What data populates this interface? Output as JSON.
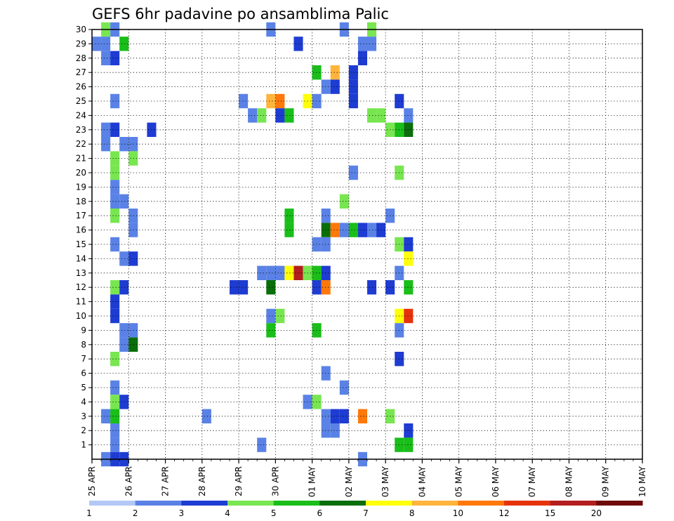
{
  "chart_data": {
    "type": "heatmap",
    "title": "GEFS 6hr padavine po ansamblima Palic",
    "x_tick_labels": [
      "25 APR",
      "26 APR",
      "27 APR",
      "28 APR",
      "29 APR",
      "30 APR",
      "01 MAY",
      "02 MAY",
      "03 MAY",
      "04 MAY",
      "05 MAY",
      "06 MAY",
      "07 MAY",
      "08 MAY",
      "09 MAY",
      "10 MAY"
    ],
    "y_tick_labels": [
      "1",
      "2",
      "3",
      "4",
      "5",
      "6",
      "7",
      "8",
      "9",
      "10",
      "11",
      "12",
      "13",
      "14",
      "15",
      "16",
      "17",
      "18",
      "19",
      "20",
      "21",
      "22",
      "23",
      "24",
      "25",
      "26",
      "27",
      "28",
      "29",
      "30"
    ],
    "x_steps_per_day": 4,
    "x_step_count": 61,
    "member_range": [
      0,
      30
    ],
    "grid": "dotted",
    "colorbar": {
      "labels": [
        "1",
        "2",
        "3",
        "4",
        "5",
        "6",
        "7",
        "8",
        "10",
        "12",
        "15",
        "20"
      ],
      "colors": [
        "#b4c8f5",
        "#5a82e6",
        "#1e3cd2",
        "#78e650",
        "#19be19",
        "#0a6e0a",
        "#ffff0a",
        "#ffb43c",
        "#ff780a",
        "#e6320a",
        "#b41e1e",
        "#6e0a0a"
      ]
    },
    "cells": [
      [
        1,
        30,
        3
      ],
      [
        2,
        30,
        1
      ],
      [
        19,
        30,
        1
      ],
      [
        27,
        30,
        1
      ],
      [
        30,
        30,
        3
      ],
      [
        0,
        29,
        1
      ],
      [
        1,
        29,
        1
      ],
      [
        3,
        29,
        4
      ],
      [
        22,
        29,
        2
      ],
      [
        29,
        29,
        1
      ],
      [
        30,
        29,
        1
      ],
      [
        1,
        28,
        1
      ],
      [
        2,
        28,
        2
      ],
      [
        29,
        28,
        2
      ],
      [
        24,
        27,
        4
      ],
      [
        26,
        27,
        7
      ],
      [
        28,
        27,
        2
      ],
      [
        25,
        26,
        1
      ],
      [
        26,
        26,
        2
      ],
      [
        28,
        26,
        2
      ],
      [
        2,
        25,
        1
      ],
      [
        16,
        25,
        1
      ],
      [
        19,
        25,
        7
      ],
      [
        20,
        25,
        8
      ],
      [
        23,
        25,
        6
      ],
      [
        24,
        25,
        1
      ],
      [
        28,
        25,
        2
      ],
      [
        33,
        25,
        2
      ],
      [
        17,
        24,
        1
      ],
      [
        18,
        24,
        3
      ],
      [
        20,
        24,
        2
      ],
      [
        21,
        24,
        4
      ],
      [
        30,
        24,
        3
      ],
      [
        31,
        24,
        3
      ],
      [
        34,
        24,
        1
      ],
      [
        1,
        23,
        1
      ],
      [
        2,
        23,
        2
      ],
      [
        6,
        23,
        2
      ],
      [
        32,
        23,
        3
      ],
      [
        33,
        23,
        4
      ],
      [
        34,
        23,
        5
      ],
      [
        1,
        22,
        1
      ],
      [
        3,
        22,
        1
      ],
      [
        4,
        22,
        1
      ],
      [
        2,
        21,
        3
      ],
      [
        4,
        21,
        3
      ],
      [
        2,
        20,
        3
      ],
      [
        28,
        20,
        1
      ],
      [
        33,
        20,
        3
      ],
      [
        2,
        19,
        1
      ],
      [
        2,
        18,
        1
      ],
      [
        3,
        18,
        1
      ],
      [
        27,
        18,
        3
      ],
      [
        2,
        17,
        3
      ],
      [
        4,
        17,
        1
      ],
      [
        21,
        17,
        4
      ],
      [
        25,
        17,
        1
      ],
      [
        32,
        17,
        1
      ],
      [
        4,
        16,
        1
      ],
      [
        21,
        16,
        4
      ],
      [
        25,
        16,
        5
      ],
      [
        26,
        16,
        8
      ],
      [
        27,
        16,
        1
      ],
      [
        28,
        16,
        4
      ],
      [
        29,
        16,
        2
      ],
      [
        30,
        16,
        1
      ],
      [
        31,
        16,
        2
      ],
      [
        2,
        15,
        1
      ],
      [
        24,
        15,
        1
      ],
      [
        25,
        15,
        1
      ],
      [
        33,
        15,
        3
      ],
      [
        34,
        15,
        2
      ],
      [
        3,
        14,
        1
      ],
      [
        4,
        14,
        2
      ],
      [
        34,
        14,
        6
      ],
      [
        18,
        13,
        1
      ],
      [
        19,
        13,
        1
      ],
      [
        20,
        13,
        1
      ],
      [
        21,
        13,
        6
      ],
      [
        22,
        13,
        10
      ],
      [
        23,
        13,
        3
      ],
      [
        24,
        13,
        4
      ],
      [
        25,
        13,
        2
      ],
      [
        33,
        13,
        1
      ],
      [
        2,
        12,
        3
      ],
      [
        3,
        12,
        2
      ],
      [
        15,
        12,
        2
      ],
      [
        16,
        12,
        2
      ],
      [
        19,
        12,
        5
      ],
      [
        24,
        12,
        2
      ],
      [
        25,
        12,
        8
      ],
      [
        30,
        12,
        2
      ],
      [
        32,
        12,
        2
      ],
      [
        34,
        12,
        4
      ],
      [
        2,
        11,
        2
      ],
      [
        2,
        10,
        2
      ],
      [
        19,
        10,
        1
      ],
      [
        20,
        10,
        3
      ],
      [
        33,
        10,
        6
      ],
      [
        34,
        10,
        9
      ],
      [
        3,
        9,
        1
      ],
      [
        4,
        9,
        1
      ],
      [
        19,
        9,
        4
      ],
      [
        24,
        9,
        4
      ],
      [
        33,
        9,
        1
      ],
      [
        3,
        8,
        1
      ],
      [
        4,
        8,
        5
      ],
      [
        2,
        7,
        3
      ],
      [
        33,
        7,
        2
      ],
      [
        25,
        6,
        1
      ],
      [
        2,
        5,
        1
      ],
      [
        27,
        5,
        1
      ],
      [
        2,
        4,
        3
      ],
      [
        3,
        4,
        2
      ],
      [
        23,
        4,
        1
      ],
      [
        24,
        4,
        3
      ],
      [
        1,
        3,
        1
      ],
      [
        2,
        3,
        4
      ],
      [
        12,
        3,
        1
      ],
      [
        25,
        3,
        1
      ],
      [
        26,
        3,
        2
      ],
      [
        27,
        3,
        2
      ],
      [
        29,
        3,
        8
      ],
      [
        32,
        3,
        3
      ],
      [
        2,
        2,
        1
      ],
      [
        25,
        2,
        1
      ],
      [
        26,
        2,
        1
      ],
      [
        34,
        2,
        2
      ],
      [
        2,
        1,
        1
      ],
      [
        18,
        1,
        1
      ],
      [
        33,
        1,
        4
      ],
      [
        34,
        1,
        4
      ],
      [
        1,
        0,
        1
      ],
      [
        2,
        0,
        2
      ],
      [
        3,
        0,
        2
      ],
      [
        29,
        0,
        1
      ]
    ]
  }
}
